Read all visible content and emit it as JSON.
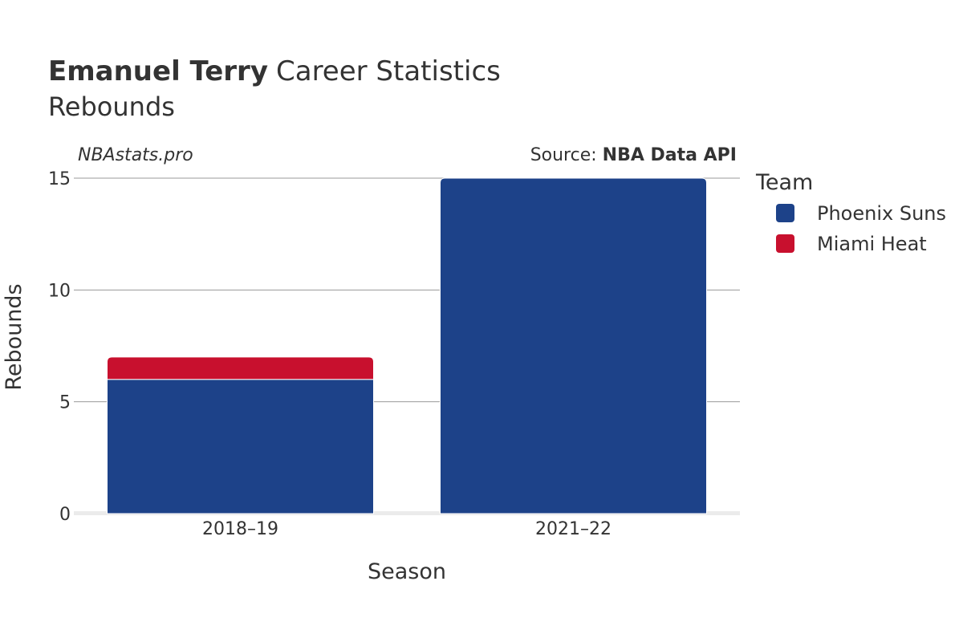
{
  "header": {
    "player_name": "Emanuel Terry",
    "title_rest": "Career Statistics",
    "subtitle": "Rebounds"
  },
  "credits": {
    "site": "NBAstats.pro",
    "source_prefix": "Source: ",
    "source_name": "NBA Data API"
  },
  "legend": {
    "title": "Team",
    "items": [
      {
        "label": "Phoenix Suns",
        "color": "#1d4289"
      },
      {
        "label": "Miami Heat",
        "color": "#c8102e"
      }
    ]
  },
  "chart_data": {
    "type": "bar",
    "stacked": true,
    "categories": [
      "2018–19",
      "2021–22"
    ],
    "series": [
      {
        "name": "Phoenix Suns",
        "color": "#1d4289",
        "values": [
          6,
          15
        ]
      },
      {
        "name": "Miami Heat",
        "color": "#c8102e",
        "values": [
          1,
          0
        ]
      }
    ],
    "xlabel": "Season",
    "ylabel": "Rebounds",
    "ylim": [
      0,
      15
    ],
    "yticks": [
      0,
      5,
      10,
      15
    ],
    "ytick_labels": [
      "0",
      "5",
      "10",
      "15"
    ],
    "grid": true,
    "legend_position": "right"
  }
}
